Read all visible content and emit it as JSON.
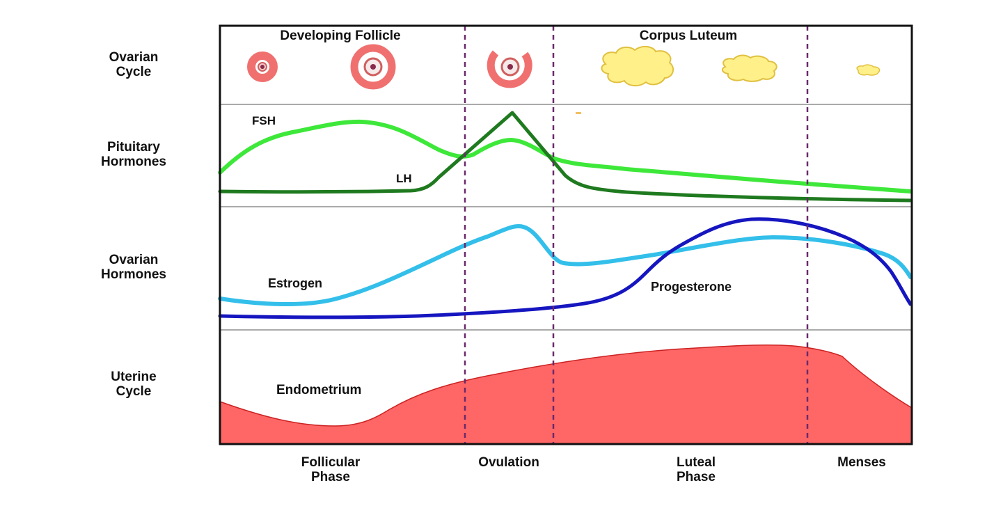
{
  "rows": [
    {
      "name": "ovarian-cycle",
      "line1": "Ovarian",
      "line2": "Cycle"
    },
    {
      "name": "pituitary-hormones",
      "line1": "Pituitary",
      "line2": "Hormones"
    },
    {
      "name": "ovarian-hormones",
      "line1": "Ovarian",
      "line2": "Hormones"
    },
    {
      "name": "uterine-cycle",
      "line1": "Uterine",
      "line2": "Cycle"
    }
  ],
  "ovarian_labels": {
    "developing_follicle": "Developing Follicle",
    "corpus_luteum": "Corpus Luteum"
  },
  "curve_labels": {
    "fsh": "FSH",
    "lh": "LH",
    "estrogen": "Estrogen",
    "progesterone": "Progesterone",
    "endometrium": "Endometrium"
  },
  "phases": [
    {
      "line1": "Follicular",
      "line2": "Phase"
    },
    {
      "line1": "Ovulation",
      "line2": ""
    },
    {
      "line1": "Luteal",
      "line2": "Phase"
    },
    {
      "line1": "Menses",
      "line2": ""
    }
  ],
  "colors": {
    "fsh": "#3ee83a",
    "lh": "#1f7a1f",
    "estrogen": "#33bfea",
    "progesterone": "#1616c0",
    "endometrium": "#ff6666",
    "follicle": "#f07070",
    "corpus_luteum": "#fff08a",
    "divider": "#6a2a6a"
  }
}
